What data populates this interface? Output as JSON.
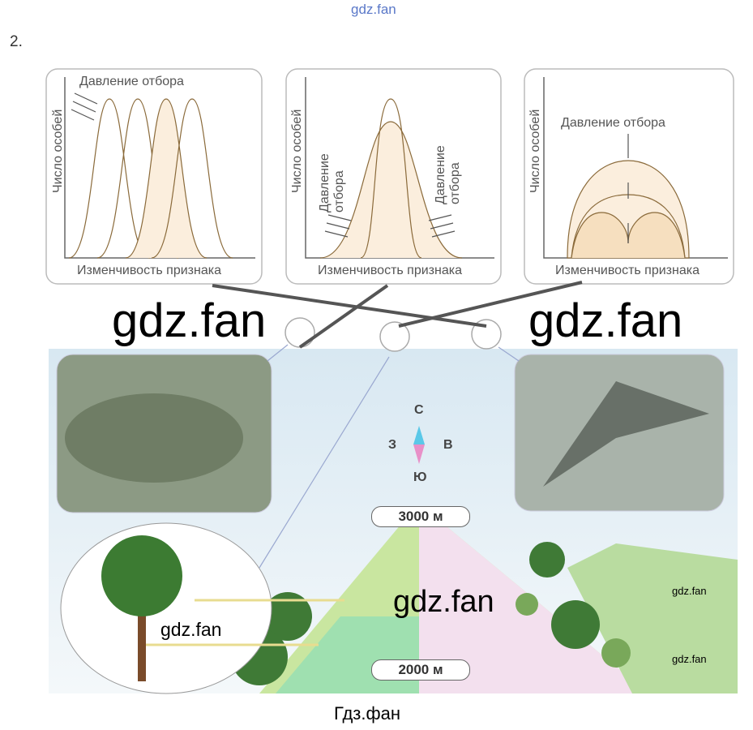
{
  "header": {
    "watermark": "gdz.fan",
    "number": "2."
  },
  "panels": [
    {
      "y_label": "Число особей",
      "x_label": "Изменчивость признака",
      "annotations": [
        "Давление отбора"
      ]
    },
    {
      "y_label": "Число особей",
      "x_label": "Изменчивость признака",
      "annotations": [
        "Давление отбора",
        "Давление отбора"
      ]
    },
    {
      "y_label": "Число особей",
      "x_label": "Изменчивость признака",
      "annotations": [
        "Давление отбора"
      ]
    }
  ],
  "watermarks": [
    "gdz.fan",
    "gdz.fan",
    "gdz.fan",
    "gdz.fan",
    "gdz.fan",
    "gdz.fan"
  ],
  "compass": {
    "north": "С",
    "west": "З",
    "east": "В",
    "south": "Ю"
  },
  "altitudes": [
    "3000 м",
    "2000 м"
  ],
  "footer": "Гдз.фан"
}
